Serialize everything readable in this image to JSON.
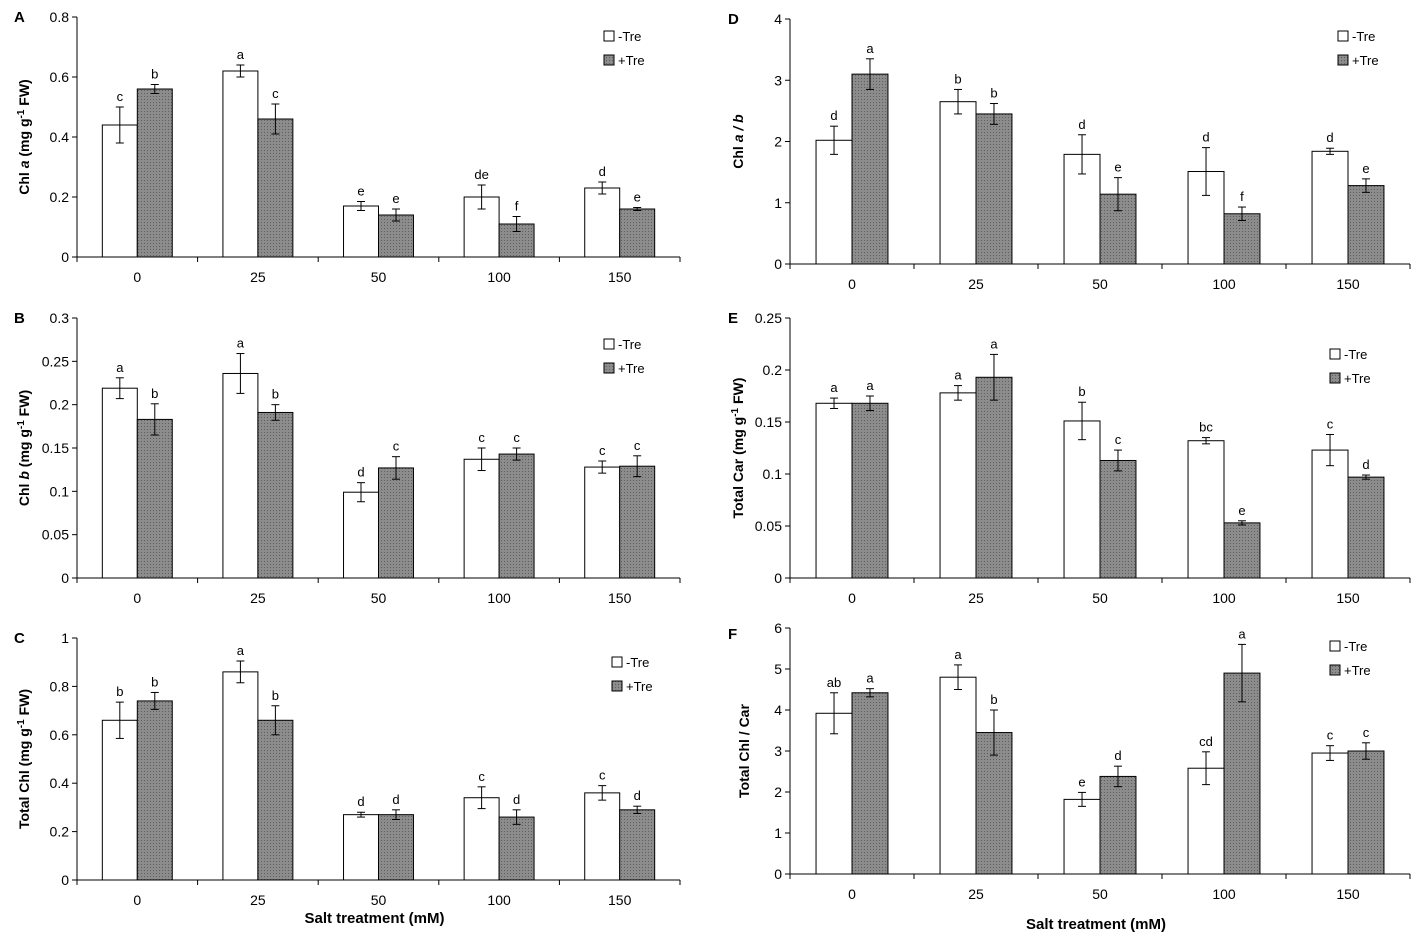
{
  "colors": {
    "neg_tre": "#ffffff",
    "pos_tre": "#8c8c8c",
    "axis": "#000000"
  },
  "chart_data": [
    {
      "panel": "A",
      "type": "bar",
      "ylabel_prefix": "Chl ",
      "ylabel_italic": "a",
      "ylabel_main": " (mg g",
      "ylabel_sup": "-1",
      "ylabel_tail": " FW)",
      "xlabel": "",
      "categories": [
        "0",
        "25",
        "50",
        "100",
        "150"
      ],
      "ylim": [
        0,
        0.8
      ],
      "yticks": [
        "0",
        "0.2",
        "0.4",
        "0.6",
        "0.8"
      ],
      "legend": [
        "-Tre",
        "+Tre"
      ],
      "legend_position": "top-right",
      "series": [
        {
          "name": "-Tre",
          "values": [
            0.44,
            0.62,
            0.17,
            0.2,
            0.23
          ],
          "errors": [
            0.06,
            0.02,
            0.015,
            0.04,
            0.02
          ],
          "letters": [
            "c",
            "a",
            "e",
            "de",
            "d"
          ]
        },
        {
          "name": "+Tre",
          "values": [
            0.56,
            0.46,
            0.14,
            0.11,
            0.16
          ],
          "errors": [
            0.015,
            0.05,
            0.02,
            0.025,
            0.005
          ],
          "letters": [
            "b",
            "c",
            "e",
            "f",
            "e"
          ]
        }
      ]
    },
    {
      "panel": "B",
      "type": "bar",
      "ylabel_prefix": "Chl ",
      "ylabel_italic": "b",
      "ylabel_main": " (mg g",
      "ylabel_sup": "-1",
      "ylabel_tail": " FW)",
      "xlabel": "",
      "categories": [
        "0",
        "25",
        "50",
        "100",
        "150"
      ],
      "ylim": [
        0,
        0.3
      ],
      "yticks": [
        "0",
        "0.05",
        "0.1",
        "0.15",
        "0.2",
        "0.25",
        "0.3"
      ],
      "legend": [
        "-Tre",
        "+Tre"
      ],
      "legend_position": "top-right",
      "series": [
        {
          "name": "-Tre",
          "values": [
            0.219,
            0.236,
            0.099,
            0.137,
            0.128
          ],
          "errors": [
            0.012,
            0.023,
            0.011,
            0.013,
            0.007
          ],
          "letters": [
            "a",
            "a",
            "d",
            "c",
            "c"
          ]
        },
        {
          "name": "+Tre",
          "values": [
            0.183,
            0.191,
            0.127,
            0.143,
            0.129
          ],
          "errors": [
            0.018,
            0.009,
            0.013,
            0.007,
            0.012
          ],
          "letters": [
            "b",
            "b",
            "c",
            "c",
            "c"
          ]
        }
      ]
    },
    {
      "panel": "C",
      "type": "bar",
      "ylabel_prefix": "Total Chl ",
      "ylabel_italic": "",
      "ylabel_main": " (mg g",
      "ylabel_sup": "-1",
      "ylabel_tail": " FW)",
      "xlabel": "Salt treatment (mM)",
      "categories": [
        "0",
        "25",
        "50",
        "100",
        "150"
      ],
      "ylim": [
        0,
        1
      ],
      "yticks": [
        "0",
        "0.2",
        "0.4",
        "0.6",
        "0.8",
        "1"
      ],
      "legend": [
        "-Tre",
        "+Tre"
      ],
      "legend_position": "top-right",
      "series": [
        {
          "name": "-Tre",
          "values": [
            0.66,
            0.86,
            0.27,
            0.34,
            0.36
          ],
          "errors": [
            0.075,
            0.045,
            0.01,
            0.045,
            0.03
          ],
          "letters": [
            "b",
            "a",
            "d",
            "c",
            "c"
          ]
        },
        {
          "name": "+Tre",
          "values": [
            0.74,
            0.66,
            0.27,
            0.26,
            0.29
          ],
          "errors": [
            0.035,
            0.06,
            0.02,
            0.03,
            0.015
          ],
          "letters": [
            "b",
            "b",
            "d",
            "d",
            "d"
          ]
        }
      ]
    },
    {
      "panel": "D",
      "type": "bar",
      "ylabel_prefix": "Chl ",
      "ylabel_italic": "a / b",
      "ylabel_main": "",
      "ylabel_sup": "",
      "ylabel_tail": "",
      "xlabel": "",
      "categories": [
        "0",
        "25",
        "50",
        "100",
        "150"
      ],
      "ylim": [
        0,
        4
      ],
      "yticks": [
        "0",
        "1",
        "2",
        "3",
        "4"
      ],
      "legend": [
        "-Tre",
        "+Tre"
      ],
      "legend_position": "top-right",
      "series": [
        {
          "name": "-Tre",
          "values": [
            2.02,
            2.65,
            1.79,
            1.51,
            1.84
          ],
          "errors": [
            0.23,
            0.2,
            0.32,
            0.39,
            0.05
          ],
          "letters": [
            "d",
            "b",
            "d",
            "d",
            "d"
          ]
        },
        {
          "name": "+Tre",
          "values": [
            3.1,
            2.45,
            1.14,
            0.82,
            1.28
          ],
          "errors": [
            0.25,
            0.17,
            0.27,
            0.11,
            0.11
          ],
          "letters": [
            "a",
            "b",
            "e",
            "f",
            "e"
          ]
        }
      ]
    },
    {
      "panel": "E",
      "type": "bar",
      "ylabel_prefix": "Total Car  (mg g",
      "ylabel_italic": "",
      "ylabel_main": "",
      "ylabel_sup": "-1",
      "ylabel_tail": " FW)",
      "xlabel": "",
      "categories": [
        "0",
        "25",
        "50",
        "100",
        "150"
      ],
      "ylim": [
        0,
        0.25
      ],
      "yticks": [
        "0",
        "0.05",
        "0.1",
        "0.15",
        "0.2",
        "0.25"
      ],
      "legend": [
        "-Tre",
        "+Tre"
      ],
      "legend_position": "top-right",
      "series": [
        {
          "name": "-Tre",
          "values": [
            0.168,
            0.178,
            0.151,
            0.132,
            0.123
          ],
          "errors": [
            0.005,
            0.007,
            0.018,
            0.003,
            0.015
          ],
          "letters": [
            "a",
            "a",
            "b",
            "bc",
            "c"
          ]
        },
        {
          "name": "+Tre",
          "values": [
            0.168,
            0.193,
            0.113,
            0.053,
            0.097
          ],
          "errors": [
            0.007,
            0.022,
            0.01,
            0.002,
            0.002
          ],
          "letters": [
            "a",
            "a",
            "c",
            "e",
            "d"
          ]
        }
      ]
    },
    {
      "panel": "F",
      "type": "bar",
      "ylabel_prefix": "Total Chl / Car",
      "ylabel_italic": "",
      "ylabel_main": "",
      "ylabel_sup": "",
      "ylabel_tail": "",
      "xlabel": "Salt treatment (mM)",
      "categories": [
        "0",
        "25",
        "50",
        "100",
        "150"
      ],
      "ylim": [
        0,
        6
      ],
      "yticks": [
        "0",
        "1",
        "2",
        "3",
        "4",
        "5",
        "6"
      ],
      "legend": [
        "-Tre",
        "+Tre"
      ],
      "legend_position": "top-right",
      "series": [
        {
          "name": "-Tre",
          "values": [
            3.92,
            4.8,
            1.82,
            2.58,
            2.95
          ],
          "errors": [
            0.5,
            0.3,
            0.17,
            0.4,
            0.18
          ],
          "letters": [
            "ab",
            "a",
            "e",
            "cd",
            "c"
          ]
        },
        {
          "name": "+Tre",
          "values": [
            4.42,
            3.45,
            2.38,
            4.9,
            3.0
          ],
          "errors": [
            0.1,
            0.55,
            0.25,
            0.7,
            0.2
          ],
          "letters": [
            "a",
            "b",
            "d",
            "a",
            "c"
          ]
        }
      ]
    }
  ]
}
